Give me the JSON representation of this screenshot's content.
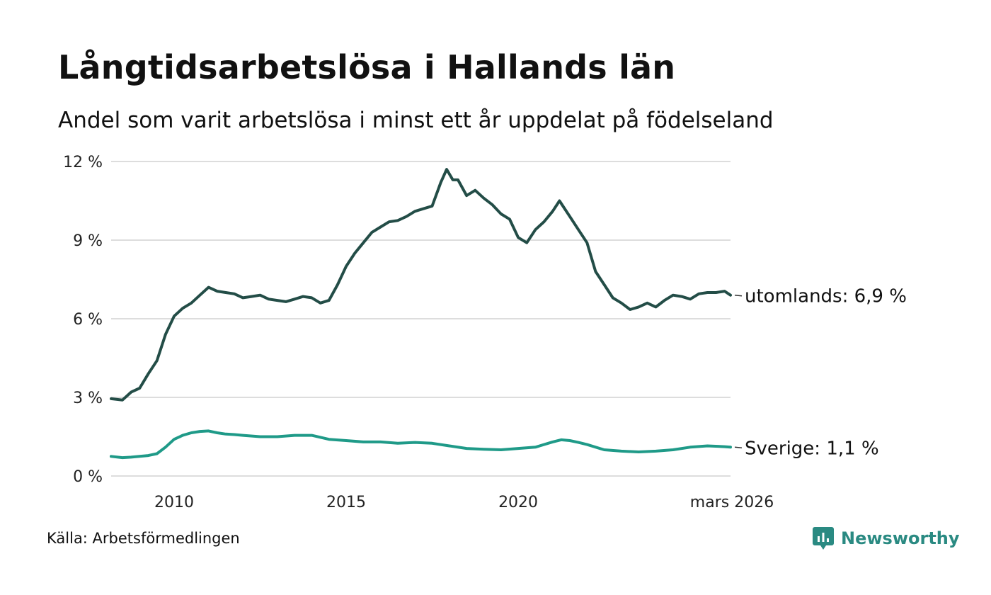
{
  "title": "Långtidsarbetslösa i Hallands län",
  "subtitle": "Andel som varit arbetslösa i minst ett år uppdelat på födelseland",
  "source": "Källa: Arbetsförmedlingen",
  "brand": {
    "name": "Newsworthy",
    "icon": "newsworthy-logo-icon",
    "color": "#2a8a82"
  },
  "chart_data": {
    "type": "line",
    "title": "Långtidsarbetslösa i Hallands län",
    "subtitle": "Andel som varit arbetslösa i minst ett år uppdelat på födelseland",
    "xlabel": "",
    "ylabel": "",
    "ylim": [
      0,
      12
    ],
    "xlim": [
      2008.17,
      2026.17
    ],
    "grid": true,
    "y_ticks": [
      0,
      3,
      6,
      9,
      12
    ],
    "y_tick_labels": [
      "0 %",
      "3 %",
      "6 %",
      "9 %",
      "12 %"
    ],
    "x_ticks": [
      2010,
      2015,
      2020,
      2026.17
    ],
    "x_tick_labels": [
      "2010",
      "2015",
      "2020",
      "mars 2026"
    ],
    "series": [
      {
        "name": "utomlands",
        "label": "utomlands: 6,9 %",
        "color": "#234d47",
        "x": [
          2008.17,
          2008.5,
          2008.75,
          2009.0,
          2009.25,
          2009.5,
          2009.75,
          2010.0,
          2010.25,
          2010.5,
          2010.75,
          2011.0,
          2011.25,
          2011.5,
          2011.75,
          2012.0,
          2012.25,
          2012.5,
          2012.75,
          2013.0,
          2013.25,
          2013.5,
          2013.75,
          2014.0,
          2014.25,
          2014.5,
          2014.75,
          2015.0,
          2015.25,
          2015.5,
          2015.75,
          2016.0,
          2016.25,
          2016.5,
          2016.75,
          2017.0,
          2017.25,
          2017.5,
          2017.75,
          2017.92,
          2018.1,
          2018.25,
          2018.5,
          2018.75,
          2019.0,
          2019.25,
          2019.5,
          2019.75,
          2020.0,
          2020.25,
          2020.5,
          2020.75,
          2021.0,
          2021.2,
          2021.35,
          2021.5,
          2021.75,
          2022.0,
          2022.25,
          2022.5,
          2022.75,
          2023.0,
          2023.25,
          2023.5,
          2023.75,
          2024.0,
          2024.25,
          2024.5,
          2024.75,
          2025.0,
          2025.25,
          2025.5,
          2025.75,
          2026.0,
          2026.17
        ],
        "values": [
          2.95,
          2.9,
          3.2,
          3.35,
          3.9,
          4.4,
          5.4,
          6.1,
          6.4,
          6.6,
          6.9,
          7.2,
          7.05,
          7.0,
          6.95,
          6.8,
          6.85,
          6.9,
          6.75,
          6.7,
          6.65,
          6.75,
          6.85,
          6.8,
          6.6,
          6.7,
          7.3,
          8.0,
          8.5,
          8.9,
          9.3,
          9.5,
          9.7,
          9.75,
          9.9,
          10.1,
          10.2,
          10.3,
          11.2,
          11.7,
          11.3,
          11.3,
          10.7,
          10.9,
          10.6,
          10.35,
          10.0,
          9.8,
          9.1,
          8.9,
          9.4,
          9.7,
          10.1,
          10.5,
          10.2,
          9.9,
          9.4,
          8.9,
          7.8,
          7.3,
          6.8,
          6.6,
          6.35,
          6.45,
          6.6,
          6.45,
          6.7,
          6.9,
          6.85,
          6.75,
          6.95,
          7.0,
          7.0,
          7.05,
          6.9
        ]
      },
      {
        "name": "Sverige",
        "label": "Sverige: 1,1 %",
        "color": "#1f9a88",
        "x": [
          2008.17,
          2008.5,
          2008.75,
          2009.0,
          2009.25,
          2009.5,
          2009.75,
          2010.0,
          2010.25,
          2010.5,
          2010.75,
          2011.0,
          2011.25,
          2011.5,
          2011.75,
          2012.0,
          2012.5,
          2013.0,
          2013.5,
          2014.0,
          2014.5,
          2015.0,
          2015.5,
          2016.0,
          2016.5,
          2017.0,
          2017.5,
          2018.0,
          2018.5,
          2019.0,
          2019.5,
          2020.0,
          2020.5,
          2021.0,
          2021.25,
          2021.5,
          2021.75,
          2022.0,
          2022.5,
          2023.0,
          2023.5,
          2024.0,
          2024.5,
          2025.0,
          2025.5,
          2026.0,
          2026.17
        ],
        "values": [
          0.75,
          0.7,
          0.72,
          0.75,
          0.78,
          0.85,
          1.1,
          1.4,
          1.55,
          1.65,
          1.7,
          1.72,
          1.65,
          1.6,
          1.58,
          1.55,
          1.5,
          1.5,
          1.55,
          1.55,
          1.4,
          1.35,
          1.3,
          1.3,
          1.25,
          1.28,
          1.25,
          1.15,
          1.05,
          1.02,
          1.0,
          1.05,
          1.1,
          1.3,
          1.38,
          1.35,
          1.28,
          1.2,
          1.0,
          0.95,
          0.92,
          0.95,
          1.0,
          1.1,
          1.15,
          1.12,
          1.1
        ]
      }
    ]
  }
}
